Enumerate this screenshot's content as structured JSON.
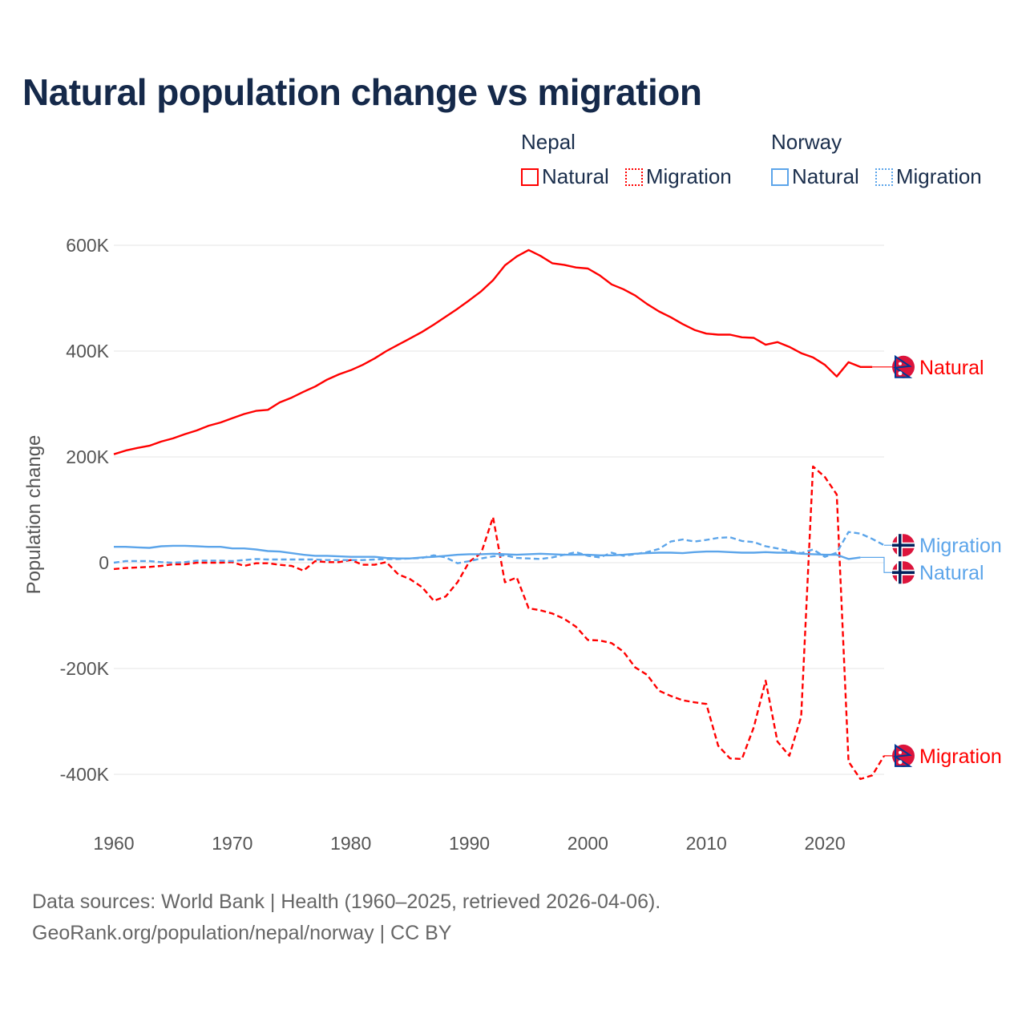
{
  "title": "Natural population change vs migration",
  "legend": {
    "groups": [
      {
        "name": "Nepal",
        "items": [
          "Natural",
          "Migration"
        ]
      },
      {
        "name": "Norway",
        "items": [
          "Natural",
          "Migration"
        ]
      }
    ]
  },
  "footer": {
    "line1": "Data sources: World Bank | Health (1960–2025, retrieved 2026-04-06).",
    "line2": "GeoRank.org/population/nepal/norway | CC BY"
  },
  "colors": {
    "nepal": "#ff0000",
    "norway": "#5ca5ea",
    "grid": "#e6e6e6",
    "tick": "#555555"
  },
  "chart_data": {
    "type": "line",
    "title": "Natural population change vs migration",
    "xlabel": "",
    "ylabel": "Population change",
    "xlim": [
      1960,
      2025
    ],
    "ylim": [
      -500000,
      620000
    ],
    "xticks": [
      1960,
      1970,
      1980,
      1990,
      2000,
      2010,
      2020
    ],
    "xtick_labels": [
      "1960",
      "1970",
      "1980",
      "1990",
      "2000",
      "2010",
      "2020"
    ],
    "yticks": [
      -400000,
      -200000,
      0,
      200000,
      400000,
      600000
    ],
    "ytick_labels": [
      "-400K",
      "-200K",
      "0",
      "200K",
      "400K",
      "600K"
    ],
    "grid": true,
    "legend_position": "top-right",
    "x": [
      1960,
      1961,
      1962,
      1963,
      1964,
      1965,
      1966,
      1967,
      1968,
      1969,
      1970,
      1971,
      1972,
      1973,
      1974,
      1975,
      1976,
      1977,
      1978,
      1979,
      1980,
      1981,
      1982,
      1983,
      1984,
      1985,
      1986,
      1987,
      1988,
      1989,
      1990,
      1991,
      1992,
      1993,
      1994,
      1995,
      1996,
      1997,
      1998,
      1999,
      2000,
      2001,
      2002,
      2003,
      2004,
      2005,
      2006,
      2007,
      2008,
      2009,
      2010,
      2011,
      2012,
      2013,
      2014,
      2015,
      2016,
      2017,
      2018,
      2019,
      2020,
      2021,
      2022,
      2023,
      2024,
      2025
    ],
    "series": [
      {
        "name": "Nepal Natural",
        "country": "nepal",
        "dash": false,
        "end_label": "Natural",
        "values": [
          205000,
          212000,
          217000,
          221000,
          229000,
          235000,
          243000,
          250000,
          259000,
          265000,
          273000,
          281000,
          287000,
          289000,
          303000,
          312000,
          323000,
          333000,
          346000,
          356000,
          364000,
          374000,
          386000,
          400000,
          412000,
          424000,
          436000,
          450000,
          465000,
          480000,
          496000,
          513000,
          534000,
          562000,
          579000,
          591000,
          580000,
          566000,
          563000,
          558000,
          556000,
          543000,
          526000,
          517000,
          505000,
          489000,
          475000,
          464000,
          451000,
          440000,
          433000,
          431000,
          431000,
          426000,
          425000,
          412000,
          417000,
          408000,
          396000,
          388000,
          374000,
          352000,
          379000,
          370000,
          370000,
          null
        ]
      },
      {
        "name": "Nepal Migration",
        "country": "nepal",
        "dash": true,
        "end_label": "Migration",
        "values": [
          -12000,
          -10000,
          -9000,
          -8000,
          -6000,
          -3000,
          -3000,
          0,
          0,
          0,
          1000,
          -6000,
          -1000,
          -1000,
          -4000,
          -6000,
          -15000,
          3000,
          1000,
          1000,
          5000,
          -4000,
          -4000,
          1000,
          -22000,
          -31000,
          -46000,
          -72000,
          -64000,
          -37000,
          2000,
          18000,
          86000,
          -37000,
          -28000,
          -86000,
          -90000,
          -96000,
          -106000,
          -121000,
          -146000,
          -147000,
          -152000,
          -168000,
          -198000,
          -212000,
          -242000,
          -252000,
          -260000,
          -264000,
          -267000,
          -346000,
          -370000,
          -371000,
          -311000,
          -223000,
          -338000,
          -365000,
          -291000,
          182000,
          162000,
          129000,
          -376000,
          -409000,
          -402000,
          -365000
        ]
      },
      {
        "name": "Norway Natural",
        "country": "norway",
        "dash": false,
        "end_label": "Natural",
        "values": [
          30000,
          30000,
          29000,
          28000,
          31000,
          32000,
          32000,
          31000,
          30000,
          30000,
          27000,
          27000,
          25000,
          22000,
          21000,
          18000,
          15000,
          13000,
          13000,
          12000,
          11000,
          11000,
          11000,
          9000,
          8000,
          8000,
          10000,
          11000,
          13000,
          15000,
          16000,
          16000,
          17000,
          16000,
          15000,
          16000,
          17000,
          16000,
          15000,
          15000,
          15000,
          14000,
          14000,
          15000,
          17000,
          18000,
          19000,
          19000,
          18000,
          20000,
          21000,
          21000,
          20000,
          19000,
          19000,
          20000,
          19000,
          19000,
          17000,
          16000,
          15000,
          15000,
          7000,
          10000,
          null,
          null
        ]
      },
      {
        "name": "Norway Migration",
        "country": "norway",
        "dash": true,
        "end_label": "Migration",
        "values": [
          0,
          3000,
          3000,
          3000,
          1000,
          0,
          1000,
          4000,
          4000,
          4000,
          3000,
          5000,
          7000,
          6000,
          6000,
          6000,
          6000,
          6000,
          5000,
          5000,
          5000,
          5000,
          6000,
          7000,
          7000,
          8000,
          9000,
          14000,
          10000,
          -1000,
          3000,
          8000,
          12000,
          14000,
          9000,
          8000,
          7000,
          10000,
          15000,
          20000,
          13000,
          10000,
          19000,
          13000,
          16000,
          20000,
          26000,
          40000,
          44000,
          40000,
          43000,
          47000,
          48000,
          41000,
          39000,
          31000,
          27000,
          22000,
          18000,
          25000,
          11000,
          19000,
          58000,
          55000,
          45000,
          33000
        ]
      }
    ]
  }
}
